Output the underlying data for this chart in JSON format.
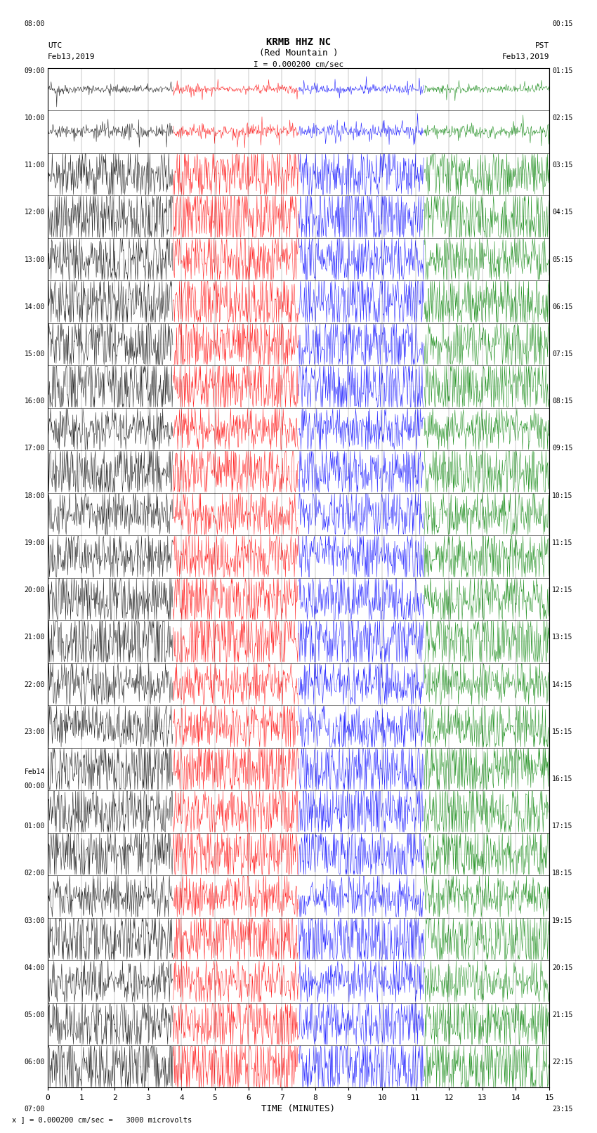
{
  "title_line1": "KRMB HHZ NC",
  "title_line2": "(Red Mountain )",
  "scale_label": "I = 0.000200 cm/sec",
  "utc_label": "UTC\nFeb13,2019",
  "pst_label": "PST\nFeb13,2019",
  "bottom_label": "x ] = 0.000200 cm/sec =   3000 microvolts",
  "xlabel": "TIME (MINUTES)",
  "left_times": [
    "08:00",
    "09:00",
    "10:00",
    "11:00",
    "12:00",
    "13:00",
    "14:00",
    "15:00",
    "16:00",
    "17:00",
    "18:00",
    "19:00",
    "20:00",
    "21:00",
    "22:00",
    "23:00",
    "Feb14\n00:00",
    "01:00",
    "02:00",
    "03:00",
    "04:00",
    "05:00",
    "06:00",
    "07:00"
  ],
  "right_times": [
    "00:15",
    "01:15",
    "02:15",
    "03:15",
    "04:15",
    "05:15",
    "06:15",
    "07:15",
    "08:15",
    "09:15",
    "10:15",
    "11:15",
    "12:15",
    "13:15",
    "14:15",
    "15:15",
    "16:15",
    "17:15",
    "18:15",
    "19:15",
    "20:15",
    "21:15",
    "22:15",
    "23:15"
  ],
  "n_rows": 24,
  "minutes_per_row": 15,
  "noise_colors": [
    "black",
    "red",
    "blue",
    "green"
  ],
  "bg_color": "white",
  "fig_width": 8.5,
  "fig_height": 16.13,
  "amplitude_scale": 3000,
  "seed": 42
}
